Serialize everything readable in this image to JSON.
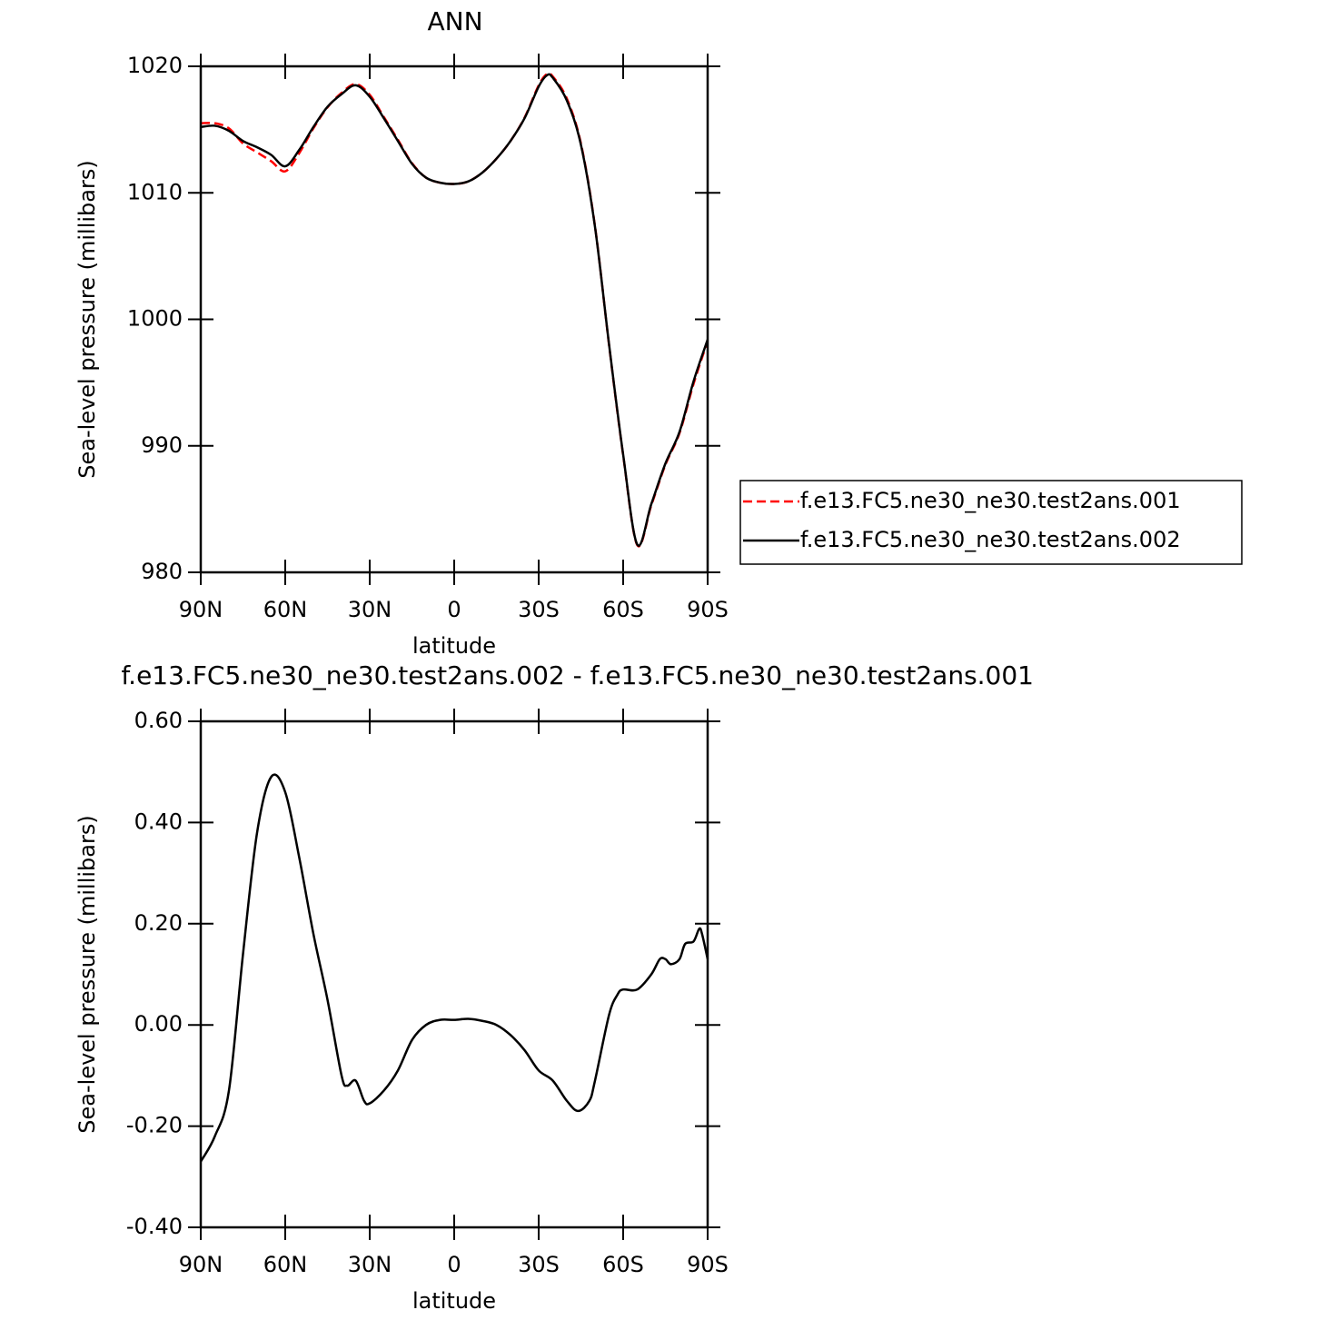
{
  "chart_data": [
    {
      "type": "line",
      "title": "ANN",
      "x_label": "latitude",
      "y_label": "Sea-level pressure (millibars)",
      "x": [
        90,
        85,
        80,
        75,
        70,
        65,
        60,
        55,
        50,
        45,
        40,
        35,
        30,
        25,
        20,
        15,
        10,
        5,
        0,
        -5,
        -10,
        -15,
        -20,
        -25,
        -30,
        -33,
        -35,
        -40,
        -45,
        -50,
        -55,
        -60,
        -65,
        -70,
        -75,
        -80,
        -85,
        -90
      ],
      "series": [
        {
          "name": "f.e13.FC5.ne30_ne30.test2ans.001",
          "color": "#ff0000",
          "linestyle": "dashed",
          "values": [
            1015.5,
            1015.5,
            1015.1,
            1013.9,
            1013.2,
            1012.5,
            1011.7,
            1013.15,
            1015.1,
            1016.75,
            1017.9,
            1018.6,
            1017.75,
            1016.0,
            1014.2,
            1012.35,
            1011.2,
            1010.8,
            1010.7,
            1010.9,
            1011.6,
            1012.7,
            1014.1,
            1015.95,
            1018.5,
            1019.4,
            1019.2,
            1017.45,
            1013.9,
            1007.35,
            997.95,
            989.25,
            982.15,
            985.3,
            988.5,
            991.0,
            994.9,
            998.3
          ]
        },
        {
          "name": "f.e13.FC5.ne30_ne30.test2ans.002",
          "color": "#000000",
          "linestyle": "solid",
          "values": [
            1015.2,
            1015.3,
            1014.9,
            1014.1,
            1013.6,
            1013.0,
            1012.1,
            1013.4,
            1015.2,
            1016.8,
            1017.8,
            1018.5,
            1017.6,
            1015.9,
            1014.1,
            1012.3,
            1011.2,
            1010.8,
            1010.7,
            1010.9,
            1011.6,
            1012.7,
            1014.1,
            1015.9,
            1018.4,
            1019.3,
            1019.1,
            1017.3,
            1013.8,
            1007.3,
            998.0,
            989.3,
            982.2,
            985.4,
            988.6,
            991.1,
            995.1,
            998.4
          ]
        }
      ],
      "xlim": [
        90,
        -90
      ],
      "xticks": [
        {
          "value": 90,
          "label": "90N"
        },
        {
          "value": 60,
          "label": "60N"
        },
        {
          "value": 30,
          "label": "30N"
        },
        0,
        {
          "value": -30,
          "label": "30S"
        },
        {
          "value": -60,
          "label": "60S"
        },
        {
          "value": -90,
          "label": "90S"
        }
      ],
      "ylim": [
        980,
        1020
      ],
      "yticks": [
        980,
        990,
        1000,
        1010,
        1020
      ],
      "legend": "outside-right"
    },
    {
      "type": "line",
      "title": "f.e13.FC5.ne30_ne30.test2ans.002 - f.e13.FC5.ne30_ne30.test2ans.001",
      "x_label": "latitude",
      "y_label": "Sea-level pressure (millibars)",
      "x": [
        90,
        85,
        80,
        75,
        70,
        65,
        60,
        55,
        50,
        45,
        40,
        38,
        35,
        32,
        30,
        25,
        20,
        15,
        10,
        5,
        0,
        -5,
        -10,
        -15,
        -20,
        -25,
        -30,
        -35,
        -40,
        -44,
        -48,
        -50,
        -55,
        -58,
        -60,
        -65,
        -70,
        -73,
        -75,
        -77,
        -80,
        -82,
        -85,
        -87,
        -88,
        -90
      ],
      "series": [
        {
          "color": "#000000",
          "linestyle": "solid",
          "values": [
            -0.27,
            -0.22,
            -0.13,
            0.14,
            0.38,
            0.49,
            0.46,
            0.33,
            0.18,
            0.05,
            -0.1,
            -0.12,
            -0.11,
            -0.15,
            -0.155,
            -0.13,
            -0.09,
            -0.03,
            0.0,
            0.01,
            0.01,
            0.012,
            0.008,
            0.0,
            -0.02,
            -0.05,
            -0.09,
            -0.11,
            -0.15,
            -0.17,
            -0.15,
            -0.11,
            0.02,
            0.06,
            0.07,
            0.07,
            0.1,
            0.13,
            0.13,
            0.12,
            0.13,
            0.16,
            0.165,
            0.19,
            0.18,
            0.13
          ]
        }
      ],
      "xlim": [
        90,
        -90
      ],
      "xticks": [
        {
          "value": 90,
          "label": "90N"
        },
        {
          "value": 60,
          "label": "60N"
        },
        {
          "value": 30,
          "label": "30N"
        },
        0,
        {
          "value": -30,
          "label": "30S"
        },
        {
          "value": -60,
          "label": "60S"
        },
        {
          "value": -90,
          "label": "90S"
        }
      ],
      "ylim": [
        -0.4,
        0.6
      ],
      "yticks": [
        {
          "value": -0.4,
          "label": "-0.40"
        },
        {
          "value": -0.2,
          "label": "-0.20"
        },
        {
          "value": 0,
          "label": "0.00"
        },
        {
          "value": 0.2,
          "label": "0.20"
        },
        {
          "value": 0.4,
          "label": "0.40"
        },
        {
          "value": 0.6,
          "label": "0.60"
        }
      ]
    }
  ]
}
